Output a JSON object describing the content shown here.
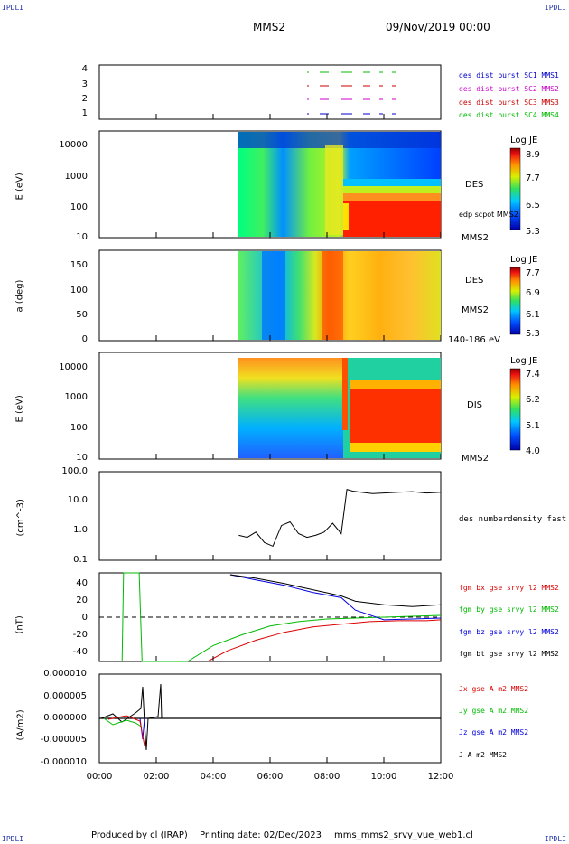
{
  "header": {
    "corner_tl": "IPDLI",
    "corner_tr": "IPDLI",
    "corner_bl": "IPDLI",
    "corner_br": "IPDLI",
    "title": "MMS2",
    "datetime": "09/Nov/2019 00:00"
  },
  "footer": {
    "produced": "Produced by cl (IRAP)",
    "printing": "Printing date: 02/Dec/2023",
    "file": "mms_mms2_srvy_vue_web1.cl"
  },
  "xaxis": {
    "ticks": [
      "00:00",
      "02:00",
      "04:00",
      "06:00",
      "08:00",
      "10:00",
      "12:00"
    ],
    "range_hours": [
      0,
      12
    ]
  },
  "chart_data": [
    {
      "type": "scatter",
      "panel": "burst",
      "yticks": [
        "4",
        "3",
        "2",
        "1"
      ],
      "legend": [
        {
          "label": "des dist burst SC1 MMS1",
          "color": "#0000cc"
        },
        {
          "label": "des dist burst SC2 MMS2",
          "color": "#cc00cc"
        },
        {
          "label": "des dist burst SC3 MMS3",
          "color": "#cc0000"
        },
        {
          "label": "des dist burst SC4 MMS4",
          "color": "#00bb00"
        }
      ]
    },
    {
      "type": "heatmap",
      "panel": "des-energy",
      "ylabel": "E (eV)",
      "yticks": [
        "10000",
        "1000",
        "100",
        "10"
      ],
      "side_labels": [
        "DES",
        "edp scpot MMS2",
        "MMS2"
      ],
      "colorbar": {
        "title": "Log JE",
        "ticks": [
          "8.9",
          "7.7",
          "6.5",
          "5.3"
        ]
      }
    },
    {
      "type": "heatmap",
      "panel": "des-pitch",
      "ylabel": "a (deg)",
      "yticks": [
        "150",
        "100",
        "50",
        "0"
      ],
      "side_labels": [
        "DES",
        "MMS2",
        "140-186 eV"
      ],
      "colorbar": {
        "title": "Log JE",
        "ticks": [
          "7.7",
          "6.9",
          "6.1",
          "5.3"
        ]
      }
    },
    {
      "type": "heatmap",
      "panel": "dis-energy",
      "ylabel": "E (eV)",
      "yticks": [
        "10000",
        "1000",
        "100",
        "10"
      ],
      "side_labels": [
        "DIS",
        "MMS2"
      ],
      "colorbar": {
        "title": "Log JE",
        "ticks": [
          "7.4",
          "6.2",
          "5.1",
          "4.0"
        ]
      }
    },
    {
      "type": "line",
      "panel": "density",
      "ylabel": "(cm^-3)",
      "yticks": [
        "100.0",
        "10.0",
        "1.0",
        "0.1"
      ],
      "yscale": "log",
      "ylim": [
        0.1,
        100
      ],
      "legend": [
        {
          "label": "des numberdensity fast M",
          "color": "#000000"
        }
      ],
      "x": [
        4.9,
        5.2,
        5.5,
        5.8,
        6.1,
        6.4,
        6.7,
        7.0,
        7.3,
        7.6,
        7.9,
        8.2,
        8.5,
        8.7,
        8.9,
        9.2,
        9.6,
        10.0,
        10.5,
        11.0,
        11.5,
        12.0
      ],
      "y": [
        0.7,
        0.6,
        0.9,
        0.4,
        0.3,
        1.5,
        2.0,
        0.8,
        0.6,
        0.7,
        0.9,
        1.8,
        0.8,
        25,
        22,
        20,
        18,
        19,
        20,
        21,
        19,
        20
      ]
    },
    {
      "type": "line",
      "panel": "magnetic",
      "ylabel": "(nT)",
      "yticks": [
        "40",
        "20",
        "0",
        "-20",
        "-40"
      ],
      "ylim": [
        -50,
        50
      ],
      "legend": [
        {
          "label": "fgm bx gse srvy l2 MMS2",
          "color": "#dd0000"
        },
        {
          "label": "fgm by gse srvy l2 MMS2",
          "color": "#00bb00"
        },
        {
          "label": "fgm bz gse srvy l2 MMS2",
          "color": "#0000dd"
        },
        {
          "label": "fgm bt gse srvy l2 MMS2",
          "color": "#000000"
        }
      ],
      "series": [
        {
          "x": [
            3.8,
            4.5,
            5.5,
            6.5,
            7.5,
            8.5,
            9.5,
            10.5,
            11.5,
            12.0
          ],
          "y": [
            -50,
            -38,
            -26,
            -17,
            -11,
            -8,
            -5,
            -4,
            -4,
            -3
          ]
        },
        {
          "x": [
            0.8,
            0.85,
            1.4,
            1.5,
            3.1,
            4.0,
            5.0,
            6.0,
            7.0,
            8.0,
            9.0,
            10.0,
            11.0,
            12.0
          ],
          "y": [
            -50,
            50,
            50,
            -50,
            -50,
            -32,
            -20,
            -10,
            -5,
            -2,
            -1,
            0,
            1,
            2
          ]
        },
        {
          "x": [
            4.6,
            5.5,
            6.5,
            7.5,
            8.5,
            9.0,
            10.0,
            11.0,
            12.0
          ],
          "y": [
            48,
            42,
            36,
            28,
            22,
            8,
            -3,
            -2,
            -1
          ]
        },
        {
          "x": [
            4.6,
            5.5,
            6.5,
            7.5,
            8.5,
            9.0,
            10.0,
            11.0,
            12.0
          ],
          "y": [
            48,
            44,
            38,
            31,
            24,
            18,
            14,
            12,
            14
          ]
        }
      ]
    },
    {
      "type": "line",
      "panel": "current",
      "ylabel": "(A/m2)",
      "yticks": [
        "0.000010",
        "0.000005",
        "0.000000",
        "-0.000005",
        "-0.000010"
      ],
      "ylim": [
        -1e-05,
        1e-05
      ],
      "legend": [
        {
          "label": "Jx gse A m2 MMS2",
          "color": "#dd0000"
        },
        {
          "label": "Jy gse A m2 MMS2",
          "color": "#00bb00"
        },
        {
          "label": "Jz gse A m2 MMS2",
          "color": "#0000dd"
        },
        {
          "label": "J A m2 MMS2",
          "color": "#000000"
        }
      ]
    }
  ]
}
